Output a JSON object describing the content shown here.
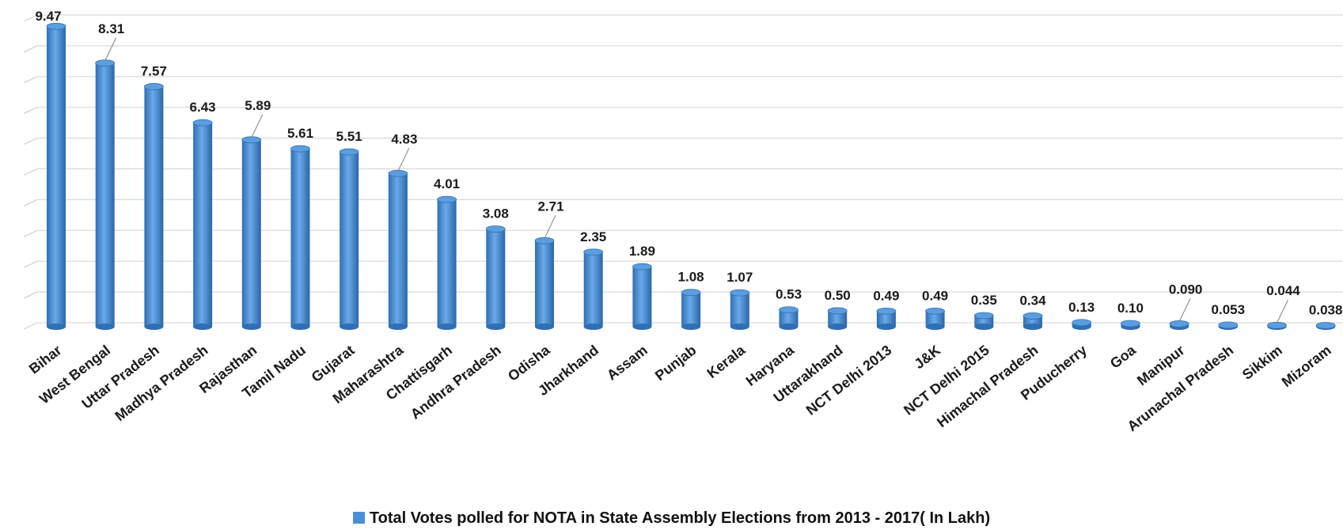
{
  "chart_data": {
    "type": "bar",
    "categories": [
      "Bihar",
      "West Bengal",
      "Uttar Pradesh",
      "Madhya Pradesh",
      "Rajasthan",
      "Tamil Nadu",
      "Gujarat",
      "Maharashtra",
      "Chattisgarh",
      "Andhra Pradesh",
      "Odisha",
      "Jharkhand",
      "Assam",
      "Punjab",
      "Kerala",
      "Haryana",
      "Uttarakhand",
      "NCT Delhi 2013",
      "J&K",
      "NCT Delhi 2015",
      "Himachal Pradesh",
      "Puducherry",
      "Goa",
      "Manipur",
      "Arunachal Pradesh",
      "Sikkim",
      "Mizoram"
    ],
    "series": [
      {
        "name": "Total Votes polled for NOTA in State Assembly Elections  from 2013 - 2017( In Lakh)",
        "values": [
          9.47,
          8.31,
          7.57,
          6.43,
          5.89,
          5.61,
          5.51,
          4.83,
          4.01,
          3.08,
          2.71,
          2.35,
          1.89,
          1.08,
          1.07,
          0.53,
          0.5,
          0.49,
          0.49,
          0.35,
          0.34,
          0.13,
          0.1,
          0.09,
          0.053,
          0.044,
          0.038
        ],
        "labels": [
          "9.47",
          "8.31",
          "7.57",
          "6.43",
          "5.89",
          "5.61",
          "5.51",
          "4.83",
          "4.01",
          "3.08",
          "2.71",
          "2.35",
          "1.89",
          "1.08",
          "1.07",
          "0.53",
          "0.50",
          "0.49",
          "0.49",
          "0.35",
          "0.34",
          "0.13",
          "0.10",
          "0.090",
          "0.053",
          "0.044",
          "0.038"
        ]
      }
    ],
    "ylim": [
      0,
      10
    ],
    "gridlines": true,
    "legend_position": "bottom-center",
    "bar_color": "#4a8fd6"
  }
}
